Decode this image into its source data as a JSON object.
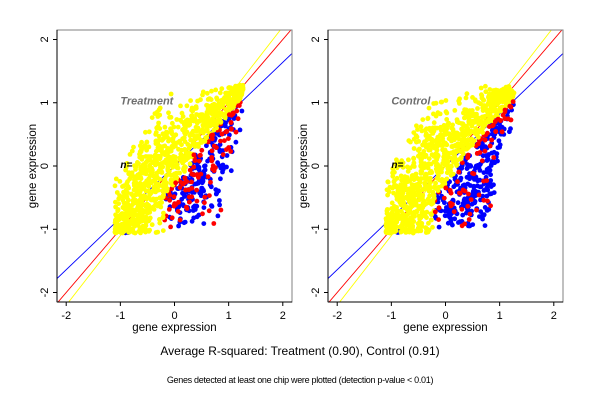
{
  "chart_data": [
    {
      "type": "scatter",
      "title": "Treatment",
      "n_label": "n=",
      "xlabel": "gene expression",
      "ylabel": "gene expression",
      "xlim": [
        -2.17,
        2.17
      ],
      "ylim": [
        -2.15,
        2.15
      ],
      "xticks": [
        -2,
        -1,
        0,
        1,
        2
      ],
      "yticks": [
        -2,
        -1,
        0,
        1,
        2
      ],
      "tick_labels": [
        "-2",
        "-1",
        "0",
        "1",
        "2"
      ],
      "grid": false,
      "point_colors": {
        "main": "#ffff00",
        "highlight_red": "#ff0000",
        "highlight_blue": "#0000ff"
      },
      "lines": [
        {
          "name": "fit-blue",
          "color": "#0000ff",
          "slope": 0.82,
          "intercept": 0.0
        },
        {
          "name": "identity-red",
          "color": "#ff0000",
          "slope": 1.0,
          "intercept": 0.0
        },
        {
          "name": "fit-yellow",
          "color": "#ffff00",
          "slope": 1.1,
          "intercept": 0.0
        }
      ],
      "cloud": {
        "x_range": [
          -1.08,
          1.27
        ],
        "y_range": [
          -1.05,
          1.28
        ],
        "seed": 17
      }
    },
    {
      "type": "scatter",
      "title": "Control",
      "n_label": "n=",
      "xlabel": "gene expression",
      "ylabel": "gene expression",
      "xlim": [
        -2.17,
        2.17
      ],
      "ylim": [
        -2.15,
        2.15
      ],
      "xticks": [
        -2,
        -1,
        0,
        1,
        2
      ],
      "yticks": [
        -2,
        -1,
        0,
        1,
        2
      ],
      "tick_labels": [
        "-2",
        "-1",
        "0",
        "1",
        "2"
      ],
      "grid": false,
      "point_colors": {
        "main": "#ffff00",
        "highlight_red": "#ff0000",
        "highlight_blue": "#0000ff"
      },
      "lines": [
        {
          "name": "fit-blue",
          "color": "#0000ff",
          "slope": 0.82,
          "intercept": 0.0
        },
        {
          "name": "identity-red",
          "color": "#ff0000",
          "slope": 1.0,
          "intercept": 0.0
        },
        {
          "name": "fit-yellow",
          "color": "#ffff00",
          "slope": 1.1,
          "intercept": 0.0
        }
      ],
      "cloud": {
        "x_range": [
          -1.12,
          1.22
        ],
        "y_range": [
          -1.1,
          1.22
        ],
        "seed": 41
      }
    }
  ],
  "captions": {
    "main": "Average R-squared: Treatment (0.90), Control (0.91)",
    "sub": "Genes detected at least one chip were plotted (detection p-value < 0.01)"
  }
}
